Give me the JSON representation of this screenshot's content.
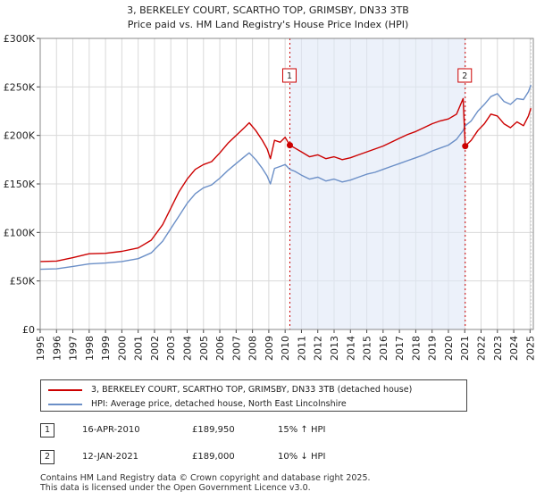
{
  "chart_data": {
    "type": "line",
    "title": "3, BERKELEY COURT, SCARTHO TOP, GRIMSBY, DN33 3TB",
    "subtitle": "Price paid vs. HM Land Registry's House Price Index (HPI)",
    "xlabel": "",
    "ylabel": "",
    "xlim": [
      1995,
      2025.2
    ],
    "ylim": [
      0,
      300000
    ],
    "y_ticks": [
      0,
      50000,
      100000,
      150000,
      200000,
      250000,
      300000
    ],
    "y_tick_labels": [
      "£0",
      "£50K",
      "£100K",
      "£150K",
      "£200K",
      "£250K",
      "£300K"
    ],
    "x_ticks": [
      1995,
      1996,
      1997,
      1998,
      1999,
      2000,
      2001,
      2002,
      2003,
      2004,
      2005,
      2006,
      2007,
      2008,
      2009,
      2010,
      2011,
      2012,
      2013,
      2014,
      2015,
      2016,
      2017,
      2018,
      2019,
      2020,
      2021,
      2022,
      2023,
      2024,
      2025
    ],
    "x_tick_labels": [
      "1995",
      "1996",
      "1997",
      "1998",
      "1999",
      "2000",
      "2001",
      "2002",
      "2003",
      "2004",
      "2005",
      "2006",
      "2007",
      "2008",
      "2009",
      "2010",
      "2011",
      "2012",
      "2013",
      "2014",
      "2015",
      "2016",
      "2017",
      "2018",
      "2019",
      "2020",
      "2021",
      "2022",
      "2023",
      "2024",
      "2025"
    ],
    "grid": true,
    "shaded_region": [
      2010.29,
      2021.03
    ],
    "series": [
      {
        "name": "3, BERKELEY COURT, SCARTHO TOP, GRIMSBY, DN33 3TB (detached house)",
        "color": "#cc0000",
        "points": [
          [
            1995.0,
            70000
          ],
          [
            1996.0,
            70500
          ],
          [
            1997.0,
            74000
          ],
          [
            1998.0,
            78000
          ],
          [
            1999.0,
            78500
          ],
          [
            2000.0,
            80500
          ],
          [
            2001.0,
            84000
          ],
          [
            2001.8,
            92000
          ],
          [
            2002.5,
            108000
          ],
          [
            2003.0,
            125000
          ],
          [
            2003.5,
            142000
          ],
          [
            2004.0,
            155000
          ],
          [
            2004.5,
            165000
          ],
          [
            2005.0,
            170000
          ],
          [
            2005.5,
            173000
          ],
          [
            2006.0,
            182000
          ],
          [
            2006.5,
            192000
          ],
          [
            2007.0,
            200000
          ],
          [
            2007.5,
            208000
          ],
          [
            2007.8,
            213000
          ],
          [
            2008.2,
            205000
          ],
          [
            2008.6,
            195000
          ],
          [
            2008.9,
            186000
          ],
          [
            2009.1,
            176000
          ],
          [
            2009.35,
            195000
          ],
          [
            2009.7,
            193000
          ],
          [
            2010.0,
            198000
          ],
          [
            2010.29,
            189950
          ],
          [
            2010.6,
            187000
          ],
          [
            2011.0,
            183000
          ],
          [
            2011.5,
            178000
          ],
          [
            2012.0,
            180000
          ],
          [
            2012.5,
            176000
          ],
          [
            2013.0,
            178000
          ],
          [
            2013.5,
            175000
          ],
          [
            2014.0,
            177000
          ],
          [
            2014.5,
            180000
          ],
          [
            2015.0,
            183000
          ],
          [
            2015.5,
            186000
          ],
          [
            2016.0,
            189000
          ],
          [
            2016.5,
            193000
          ],
          [
            2017.0,
            197000
          ],
          [
            2017.5,
            201000
          ],
          [
            2018.0,
            204000
          ],
          [
            2018.5,
            208000
          ],
          [
            2019.0,
            212000
          ],
          [
            2019.5,
            215000
          ],
          [
            2020.0,
            217000
          ],
          [
            2020.5,
            222000
          ],
          [
            2020.9,
            238000
          ],
          [
            2021.03,
            189000
          ],
          [
            2021.4,
            195000
          ],
          [
            2021.8,
            205000
          ],
          [
            2022.2,
            212000
          ],
          [
            2022.6,
            222000
          ],
          [
            2023.0,
            220000
          ],
          [
            2023.4,
            212000
          ],
          [
            2023.8,
            208000
          ],
          [
            2024.2,
            214000
          ],
          [
            2024.6,
            210000
          ],
          [
            2024.9,
            220000
          ],
          [
            2025.05,
            228000
          ]
        ]
      },
      {
        "name": "HPI: Average price, detached house, North East Lincolnshire",
        "color": "#6b8fc7",
        "points": [
          [
            1995.0,
            62000
          ],
          [
            1996.0,
            62500
          ],
          [
            1997.0,
            65000
          ],
          [
            1998.0,
            67500
          ],
          [
            1999.0,
            68500
          ],
          [
            2000.0,
            70000
          ],
          [
            2001.0,
            73000
          ],
          [
            2001.8,
            79000
          ],
          [
            2002.5,
            91000
          ],
          [
            2003.0,
            104000
          ],
          [
            2003.5,
            117000
          ],
          [
            2004.0,
            130000
          ],
          [
            2004.5,
            140000
          ],
          [
            2005.0,
            146000
          ],
          [
            2005.5,
            149000
          ],
          [
            2006.0,
            156000
          ],
          [
            2006.5,
            164000
          ],
          [
            2007.0,
            171000
          ],
          [
            2007.5,
            178000
          ],
          [
            2007.8,
            182000
          ],
          [
            2008.2,
            175000
          ],
          [
            2008.6,
            166000
          ],
          [
            2008.9,
            158000
          ],
          [
            2009.1,
            150000
          ],
          [
            2009.35,
            166000
          ],
          [
            2009.7,
            168000
          ],
          [
            2010.0,
            170000
          ],
          [
            2010.29,
            165000
          ],
          [
            2010.6,
            163000
          ],
          [
            2011.0,
            159000
          ],
          [
            2011.5,
            155000
          ],
          [
            2012.0,
            157000
          ],
          [
            2012.5,
            153000
          ],
          [
            2013.0,
            155000
          ],
          [
            2013.5,
            152000
          ],
          [
            2014.0,
            154000
          ],
          [
            2014.5,
            157000
          ],
          [
            2015.0,
            160000
          ],
          [
            2015.5,
            162000
          ],
          [
            2016.0,
            165000
          ],
          [
            2016.5,
            168000
          ],
          [
            2017.0,
            171000
          ],
          [
            2017.5,
            174000
          ],
          [
            2018.0,
            177000
          ],
          [
            2018.5,
            180000
          ],
          [
            2019.0,
            184000
          ],
          [
            2019.5,
            187000
          ],
          [
            2020.0,
            190000
          ],
          [
            2020.5,
            196000
          ],
          [
            2020.9,
            205000
          ],
          [
            2021.03,
            210000
          ],
          [
            2021.4,
            215000
          ],
          [
            2021.8,
            225000
          ],
          [
            2022.2,
            232000
          ],
          [
            2022.6,
            240000
          ],
          [
            2023.0,
            243000
          ],
          [
            2023.4,
            235000
          ],
          [
            2023.8,
            232000
          ],
          [
            2024.2,
            238000
          ],
          [
            2024.6,
            237000
          ],
          [
            2024.9,
            245000
          ],
          [
            2025.05,
            252000
          ]
        ]
      }
    ],
    "annotations": [
      {
        "label": "1",
        "x": 2010.29,
        "y": 189950
      },
      {
        "label": "2",
        "x": 2021.03,
        "y": 189000
      }
    ]
  },
  "legend": {
    "items": [
      {
        "label": "3, BERKELEY COURT, SCARTHO TOP, GRIMSBY, DN33 3TB (detached house)",
        "color": "#cc0000"
      },
      {
        "label": "HPI: Average price, detached house, North East Lincolnshire",
        "color": "#6b8fc7"
      }
    ]
  },
  "transactions": [
    {
      "num": "1",
      "date": "16-APR-2010",
      "price": "£189,950",
      "hpi": "15% ↑ HPI"
    },
    {
      "num": "2",
      "date": "12-JAN-2021",
      "price": "£189,000",
      "hpi": "10% ↓ HPI"
    }
  ],
  "footer": {
    "line1": "Contains HM Land Registry data © Crown copyright and database right 2025.",
    "line2": "This data is licensed under the Open Government Licence v3.0."
  }
}
